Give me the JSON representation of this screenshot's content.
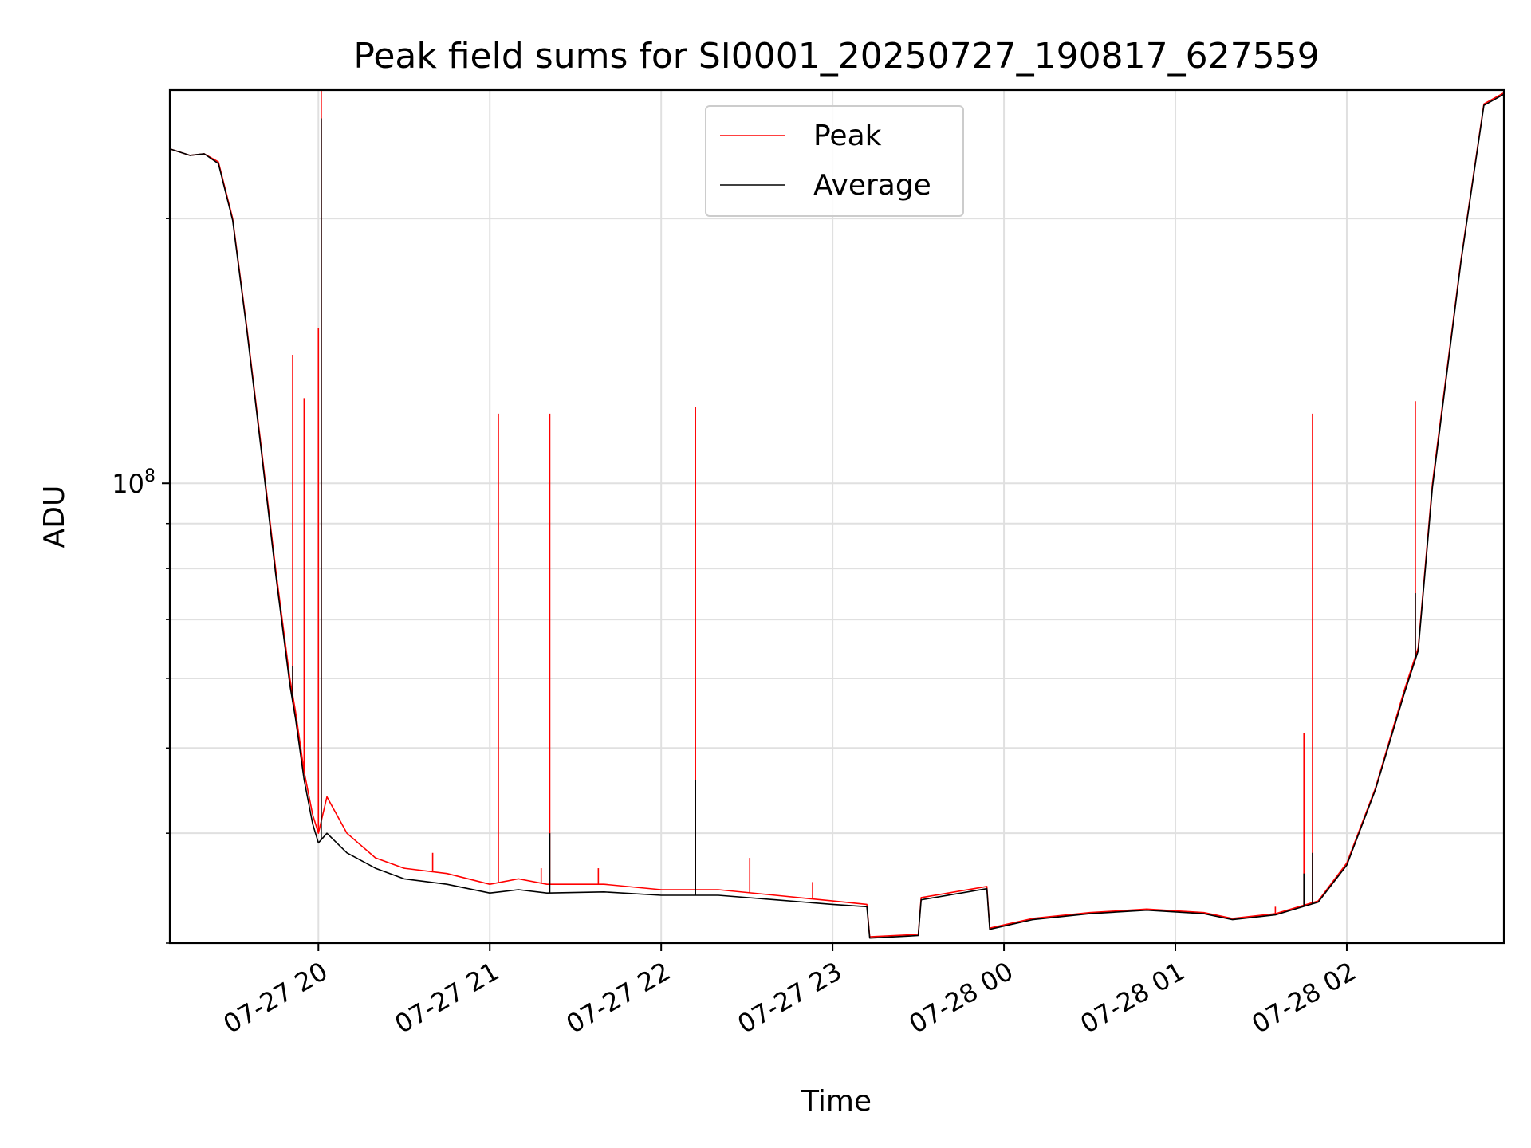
{
  "chart_data": {
    "type": "line",
    "title": "Peak field sums for SI0001_20250727_190817_627559",
    "xlabel": "Time",
    "ylabel": "ADU",
    "y_scale": "log",
    "grid": true,
    "legend_placement": "top-center",
    "xlim": [
      "2025-07-27 19:08",
      "2025-07-28 02:55"
    ],
    "ylim": [
      30000000,
      280000000
    ],
    "x_ticks": [
      {
        "value": "2025-07-27 20:00",
        "label": "07-27 20"
      },
      {
        "value": "2025-07-27 21:00",
        "label": "07-27 21"
      },
      {
        "value": "2025-07-27 22:00",
        "label": "07-27 22"
      },
      {
        "value": "2025-07-27 23:00",
        "label": "07-27 23"
      },
      {
        "value": "2025-07-28 00:00",
        "label": "07-28 00"
      },
      {
        "value": "2025-07-28 01:00",
        "label": "07-28 01"
      },
      {
        "value": "2025-07-28 02:00",
        "label": "07-28 02"
      }
    ],
    "y_major_ticks": [
      {
        "value": 100000000,
        "base": "10",
        "exp": "8"
      }
    ],
    "y_minor_ticks": [
      30000000,
      40000000,
      50000000,
      60000000,
      70000000,
      80000000,
      90000000,
      200000000
    ],
    "series": [
      {
        "name": "Peak",
        "color": "#ff0000",
        "x": [
          "2025-07-27 19:08",
          "2025-07-27 19:15",
          "2025-07-27 19:20",
          "2025-07-27 19:25",
          "2025-07-27 19:30",
          "2025-07-27 19:35",
          "2025-07-27 19:40",
          "2025-07-27 19:45",
          "2025-07-27 19:50",
          "2025-07-27 19:52",
          "2025-07-27 19:55",
          "2025-07-27 19:58",
          "2025-07-27 20:00",
          "2025-07-27 20:03",
          "2025-07-27 20:10",
          "2025-07-27 20:20",
          "2025-07-27 20:30",
          "2025-07-27 20:45",
          "2025-07-27 21:00",
          "2025-07-27 21:10",
          "2025-07-27 21:20",
          "2025-07-27 21:40",
          "2025-07-27 22:00",
          "2025-07-27 22:20",
          "2025-07-27 22:40",
          "2025-07-27 23:00",
          "2025-07-27 23:12",
          "2025-07-27 23:13",
          "2025-07-27 23:30",
          "2025-07-27 23:31",
          "2025-07-27 23:54",
          "2025-07-27 23:55",
          "2025-07-28 00:10",
          "2025-07-28 00:30",
          "2025-07-28 00:50",
          "2025-07-28 01:10",
          "2025-07-28 01:20",
          "2025-07-28 01:35",
          "2025-07-28 01:50",
          "2025-07-28 02:00",
          "2025-07-28 02:10",
          "2025-07-28 02:20",
          "2025-07-28 02:25",
          "2025-07-28 02:30",
          "2025-07-28 02:40",
          "2025-07-28 02:48",
          "2025-07-28 02:55"
        ],
        "y": [
          240000000,
          236000000,
          237000000,
          232000000,
          200000000,
          150000000,
          110000000,
          80000000,
          60000000,
          55000000,
          47000000,
          42000000,
          40000000,
          44000000,
          40000000,
          37500000,
          36500000,
          36000000,
          35000000,
          35500000,
          35000000,
          35000000,
          34500000,
          34500000,
          34000000,
          33500000,
          33200000,
          30500000,
          30700000,
          33800000,
          34800000,
          31200000,
          32000000,
          32500000,
          32800000,
          32500000,
          32000000,
          32400000,
          33500000,
          37000000,
          45000000,
          58000000,
          65000000,
          100000000,
          180000000,
          270000000,
          278000000
        ],
        "spikes": [
          {
            "x": "2025-07-27 19:51",
            "y": 140000000
          },
          {
            "x": "2025-07-27 19:55",
            "y": 125000000
          },
          {
            "x": "2025-07-27 20:00",
            "y": 150000000
          },
          {
            "x": "2025-07-27 20:01",
            "y": 280000000
          },
          {
            "x": "2025-07-27 20:40",
            "y": 38000000
          },
          {
            "x": "2025-07-27 21:03",
            "y": 120000000
          },
          {
            "x": "2025-07-27 21:18",
            "y": 36500000
          },
          {
            "x": "2025-07-27 21:21",
            "y": 120000000
          },
          {
            "x": "2025-07-27 21:38",
            "y": 36500000
          },
          {
            "x": "2025-07-27 22:12",
            "y": 122000000
          },
          {
            "x": "2025-07-27 22:31",
            "y": 37500000
          },
          {
            "x": "2025-07-27 22:53",
            "y": 35200000
          },
          {
            "x": "2025-07-28 01:35",
            "y": 33000000
          },
          {
            "x": "2025-07-28 01:45",
            "y": 52000000
          },
          {
            "x": "2025-07-28 01:48",
            "y": 120000000
          },
          {
            "x": "2025-07-28 02:24",
            "y": 124000000
          }
        ]
      },
      {
        "name": "Average",
        "color": "#000000",
        "x": [
          "2025-07-27 19:08",
          "2025-07-27 19:15",
          "2025-07-27 19:20",
          "2025-07-27 19:25",
          "2025-07-27 19:30",
          "2025-07-27 19:35",
          "2025-07-27 19:40",
          "2025-07-27 19:45",
          "2025-07-27 19:50",
          "2025-07-27 19:52",
          "2025-07-27 19:55",
          "2025-07-27 19:58",
          "2025-07-27 20:00",
          "2025-07-27 20:03",
          "2025-07-27 20:10",
          "2025-07-27 20:20",
          "2025-07-27 20:30",
          "2025-07-27 20:45",
          "2025-07-27 21:00",
          "2025-07-27 21:10",
          "2025-07-27 21:20",
          "2025-07-27 21:40",
          "2025-07-27 22:00",
          "2025-07-27 22:20",
          "2025-07-27 22:40",
          "2025-07-27 23:00",
          "2025-07-27 23:12",
          "2025-07-27 23:13",
          "2025-07-27 23:30",
          "2025-07-27 23:31",
          "2025-07-27 23:54",
          "2025-07-27 23:55",
          "2025-07-28 00:10",
          "2025-07-28 00:30",
          "2025-07-28 00:50",
          "2025-07-28 01:10",
          "2025-07-28 01:20",
          "2025-07-28 01:35",
          "2025-07-28 01:50",
          "2025-07-28 02:00",
          "2025-07-28 02:10",
          "2025-07-28 02:20",
          "2025-07-28 02:25",
          "2025-07-28 02:30",
          "2025-07-28 02:40",
          "2025-07-28 02:48",
          "2025-07-28 02:55"
        ],
        "y": [
          240000000,
          236000000,
          237000000,
          231000000,
          199000000,
          149000000,
          109000000,
          79000000,
          59000000,
          54000000,
          46000000,
          41000000,
          39000000,
          40000000,
          38000000,
          36500000,
          35500000,
          35000000,
          34200000,
          34500000,
          34200000,
          34300000,
          34000000,
          34000000,
          33600000,
          33200000,
          33000000,
          30400000,
          30600000,
          33600000,
          34600000,
          31100000,
          31900000,
          32400000,
          32700000,
          32400000,
          31900000,
          32300000,
          33400000,
          36800000,
          44800000,
          57500000,
          64500000,
          99000000,
          179000000,
          269000000,
          277000000
        ],
        "spikes": [
          {
            "x": "2025-07-27 19:51",
            "y": 62000000
          },
          {
            "x": "2025-07-27 20:01",
            "y": 260000000
          },
          {
            "x": "2025-07-27 21:21",
            "y": 40000000
          },
          {
            "x": "2025-07-27 22:12",
            "y": 46000000
          },
          {
            "x": "2025-07-28 01:45",
            "y": 36000000
          },
          {
            "x": "2025-07-28 01:48",
            "y": 38000000
          },
          {
            "x": "2025-07-28 02:24",
            "y": 75000000
          }
        ]
      }
    ]
  }
}
